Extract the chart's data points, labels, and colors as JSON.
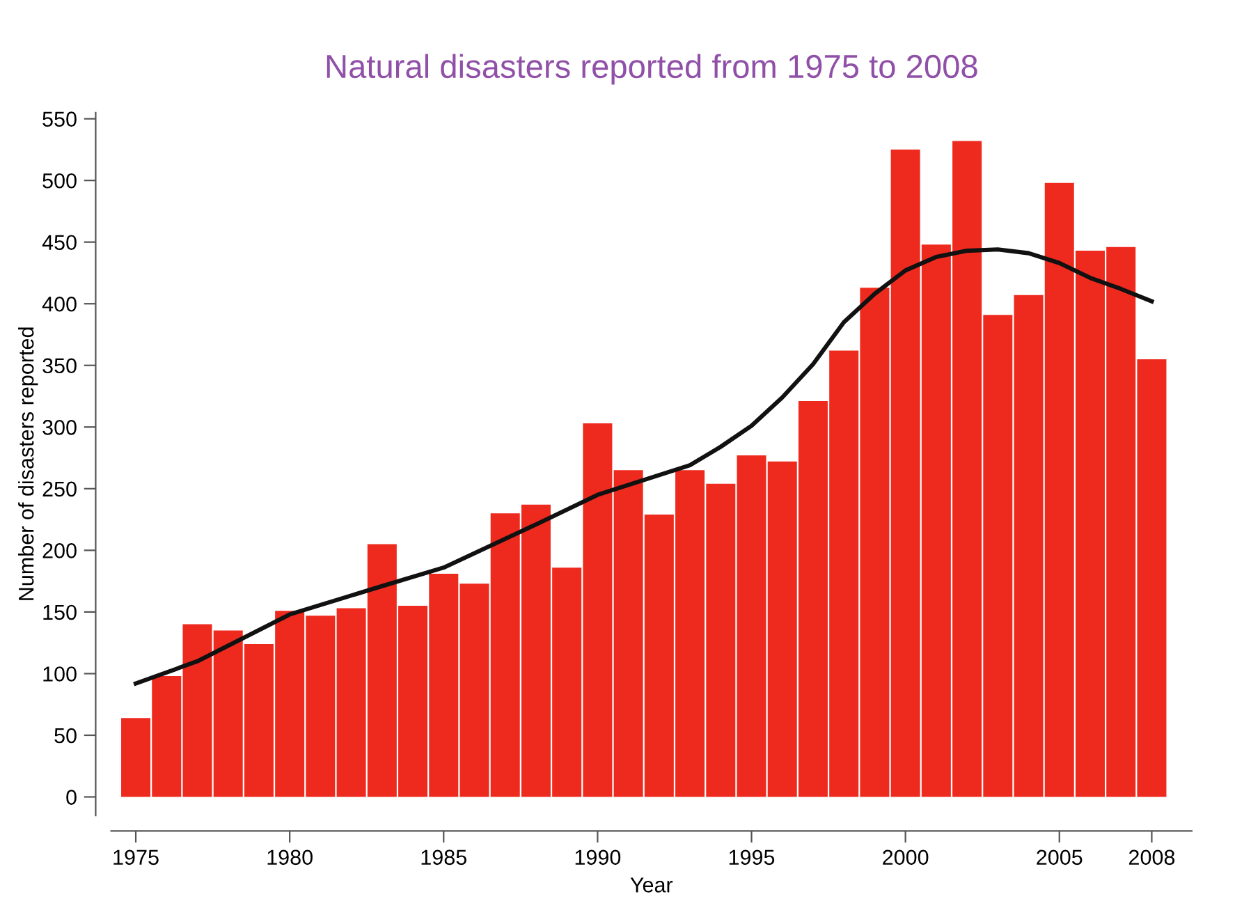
{
  "chart_data": {
    "type": "bar",
    "title": "Natural disasters reported from 1975 to 2008",
    "xlabel": "Year",
    "ylabel": "Number of disasters reported",
    "x": [
      1975,
      1976,
      1977,
      1978,
      1979,
      1980,
      1981,
      1982,
      1983,
      1984,
      1985,
      1986,
      1987,
      1988,
      1989,
      1990,
      1991,
      1992,
      1993,
      1994,
      1995,
      1996,
      1997,
      1998,
      1999,
      2000,
      2001,
      2002,
      2003,
      2004,
      2005,
      2006,
      2007,
      2008
    ],
    "series": [
      {
        "color": "#ee2a1e",
        "values": [
          64,
          98,
          140,
          135,
          124,
          151,
          147,
          153,
          205,
          155,
          181,
          173,
          230,
          237,
          186,
          303,
          265,
          229,
          265,
          254,
          277,
          272,
          321,
          362,
          413,
          525,
          448,
          532,
          391,
          407,
          498,
          443,
          446,
          355
        ]
      },
      {
        "type": "line",
        "color": "#111111",
        "x": [
          1975,
          1977,
          1980,
          1983,
          1985,
          1988,
          1990,
          1993,
          1994,
          1995,
          1996,
          1997,
          1998,
          1999,
          2000,
          2001,
          2002,
          2003,
          2004,
          2005,
          2006,
          2007,
          2008
        ],
        "values": [
          92,
          110,
          148,
          171,
          186,
          221,
          245,
          269,
          284,
          301,
          324,
          351,
          385,
          408,
          427,
          438,
          443,
          444,
          441,
          433,
          421,
          412,
          402
        ]
      }
    ],
    "xlim": [
      1974.2,
      2009.3
    ],
    "xticks": [
      1975,
      1980,
      1985,
      1990,
      1995,
      2000,
      2005,
      2008
    ],
    "ylim": [
      -15,
      555
    ],
    "yticks": [
      0,
      50,
      100,
      150,
      200,
      250,
      300,
      350,
      400,
      450,
      500,
      550
    ],
    "grid": false,
    "legend": false,
    "marker": "none",
    "line_style": "solid"
  }
}
